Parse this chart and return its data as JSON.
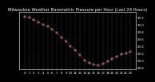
{
  "hours": [
    0,
    1,
    2,
    3,
    4,
    5,
    6,
    7,
    8,
    9,
    10,
    11,
    12,
    13,
    14,
    15,
    16,
    17,
    18,
    19,
    20,
    21,
    22,
    23
  ],
  "pressure": [
    30.22,
    30.18,
    30.12,
    30.06,
    30.0,
    29.94,
    29.86,
    29.76,
    29.64,
    29.52,
    29.4,
    29.28,
    29.14,
    29.0,
    28.92,
    28.88,
    28.86,
    28.9,
    28.96,
    29.04,
    29.1,
    29.16,
    29.2,
    29.24
  ],
  "line_color": "#ff0000",
  "marker_color": "#111111",
  "bg_color": "#000000",
  "plot_bg": "#000000",
  "grid_color": "#888888",
  "text_color": "#ffffff",
  "ylim": [
    28.75,
    30.35
  ],
  "yticks": [
    28.8,
    29.0,
    29.2,
    29.4,
    29.6,
    29.8,
    30.0,
    30.2
  ],
  "title": "Milwaukee Weather Barometric Pressure per Hour (Last 24 Hours)",
  "title_fontsize": 3.8,
  "tick_fontsize": 2.8,
  "line_width": 0.7,
  "marker_size": 1.8,
  "grid_alpha": 0.6
}
